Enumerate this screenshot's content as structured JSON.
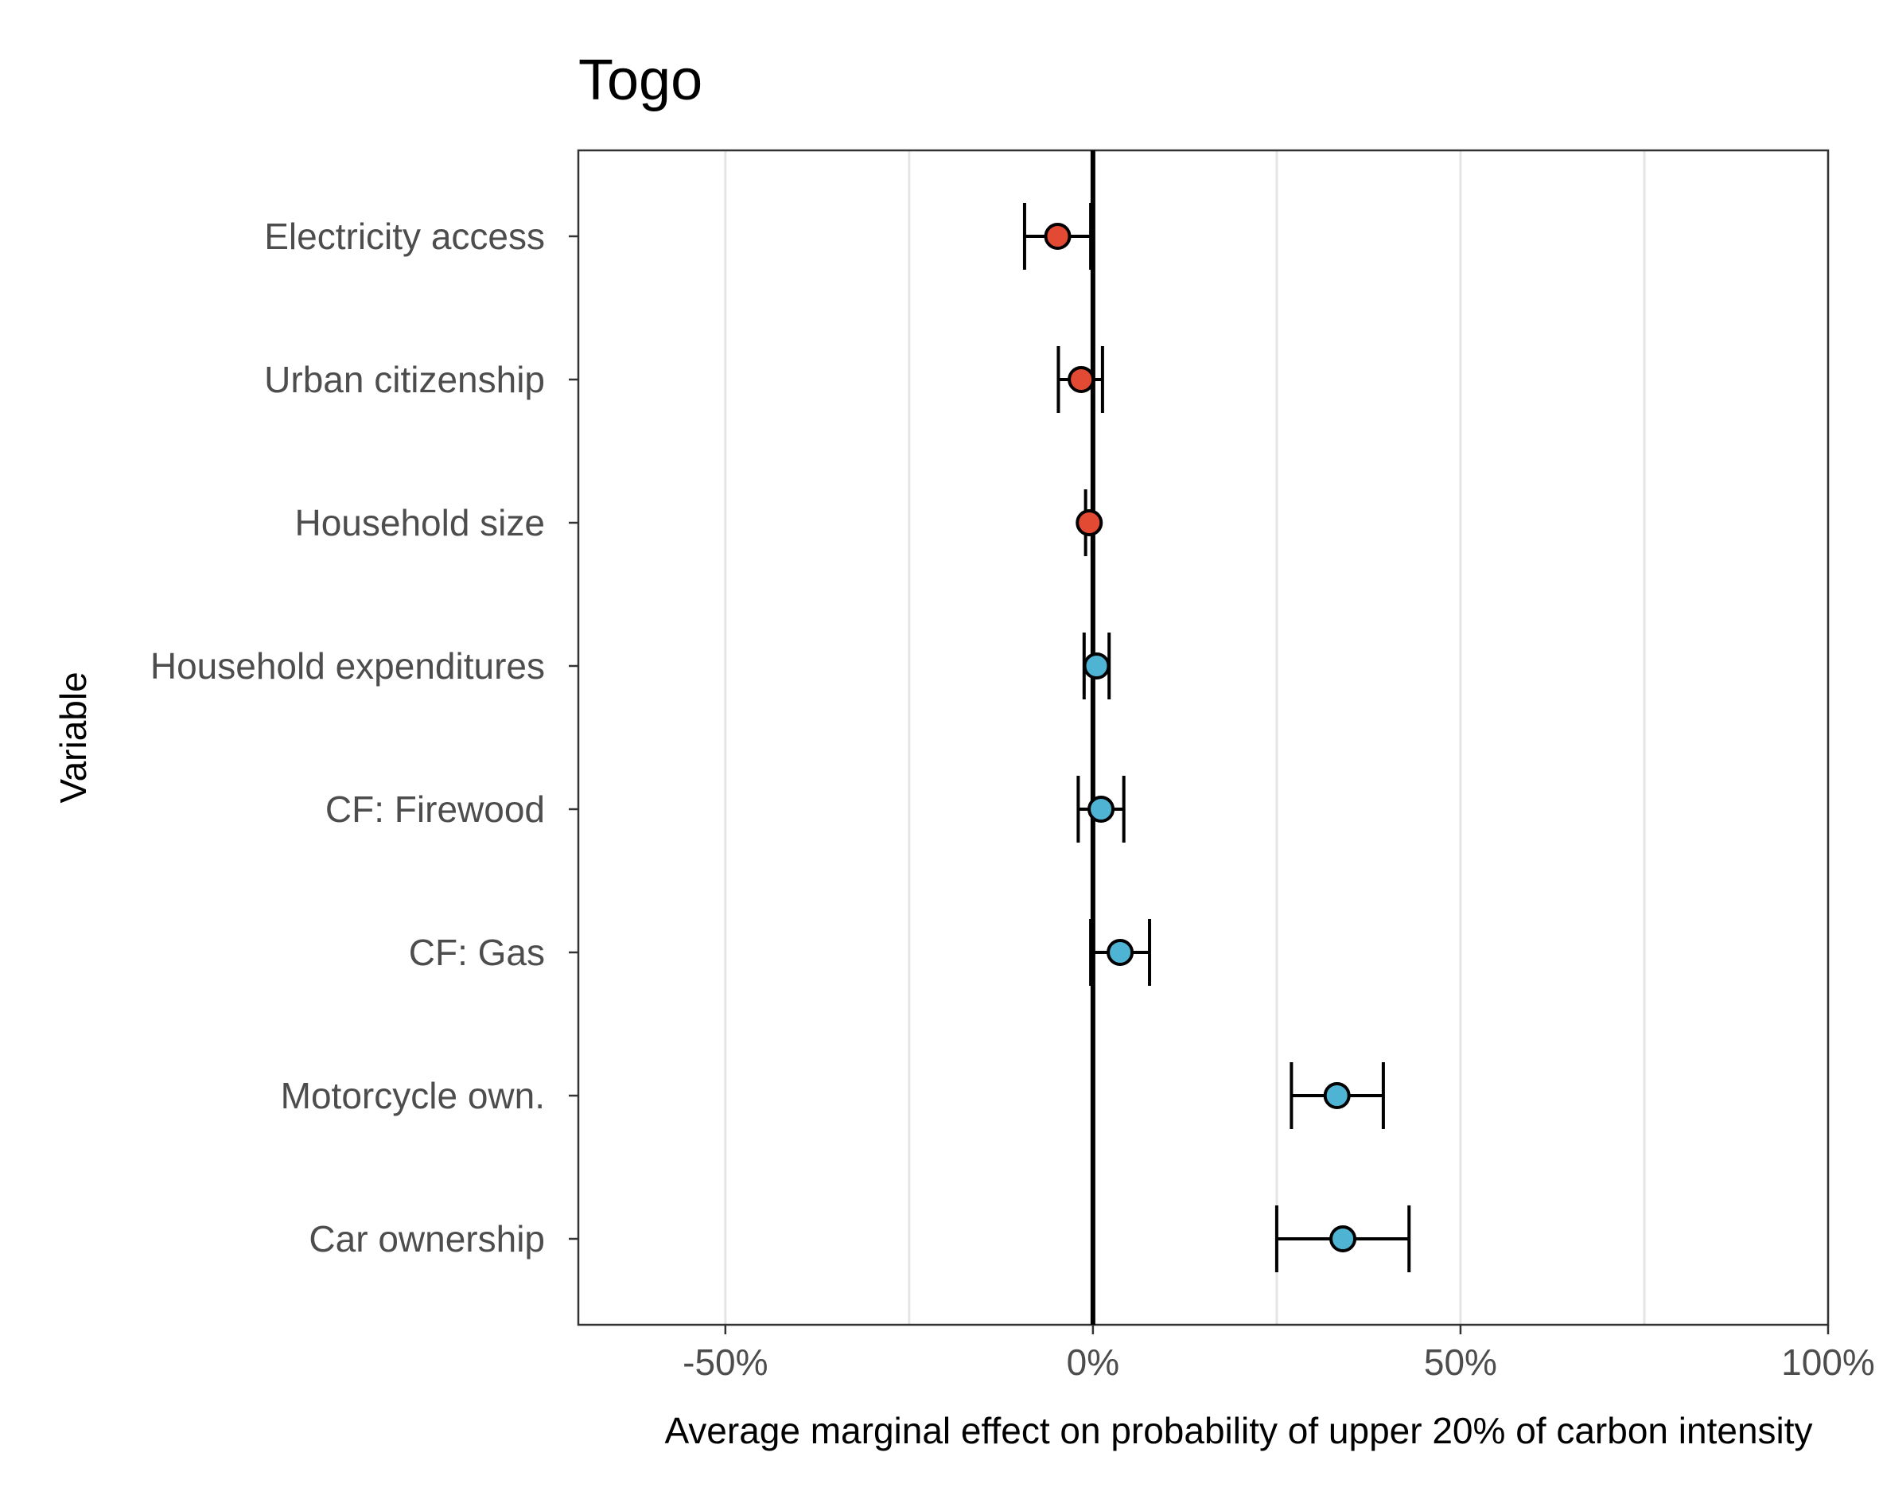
{
  "chart_data": {
    "type": "scatter",
    "title": "Togo",
    "xlabel": "Average marginal effect on probability of upper 20% of carbon intensity",
    "ylabel": "Variable",
    "xlim": [
      -0.7,
      1.0
    ],
    "x_ticks": [
      -0.5,
      0,
      0.5,
      1.0
    ],
    "x_tick_labels": [
      "-50%",
      "0%",
      "50%",
      "100%"
    ],
    "minor_gridlines": [
      -0.25,
      0.25,
      0.75
    ],
    "reference_line": 0,
    "grid": true,
    "colors": {
      "negative": "#e34a33",
      "positive": "#4fb3d3",
      "outline": "#000000",
      "grid": "#e5e5e5"
    },
    "categories": [
      "Electricity access",
      "Urban citizenship",
      "Household size",
      "Household expenditures",
      "CF: Firewood",
      "CF: Gas",
      "Motorcycle own.",
      "Car ownership"
    ],
    "points": [
      {
        "variable": "Electricity access",
        "estimate": -0.048,
        "ci_low": -0.093,
        "ci_high": -0.003,
        "sign": "negative"
      },
      {
        "variable": "Urban citizenship",
        "estimate": -0.016,
        "ci_low": -0.047,
        "ci_high": 0.013,
        "sign": "negative"
      },
      {
        "variable": "Household size",
        "estimate": -0.005,
        "ci_low": -0.01,
        "ci_high": -0.001,
        "sign": "negative"
      },
      {
        "variable": "Household expenditures",
        "estimate": 0.005,
        "ci_low": -0.012,
        "ci_high": 0.022,
        "sign": "positive"
      },
      {
        "variable": "CF: Firewood",
        "estimate": 0.011,
        "ci_low": -0.02,
        "ci_high": 0.042,
        "sign": "positive"
      },
      {
        "variable": "CF: Gas",
        "estimate": 0.037,
        "ci_low": -0.003,
        "ci_high": 0.077,
        "sign": "positive"
      },
      {
        "variable": "Motorcycle own.",
        "estimate": 0.332,
        "ci_low": 0.27,
        "ci_high": 0.395,
        "sign": "positive"
      },
      {
        "variable": "Car ownership",
        "estimate": 0.34,
        "ci_low": 0.25,
        "ci_high": 0.43,
        "sign": "positive"
      }
    ]
  }
}
